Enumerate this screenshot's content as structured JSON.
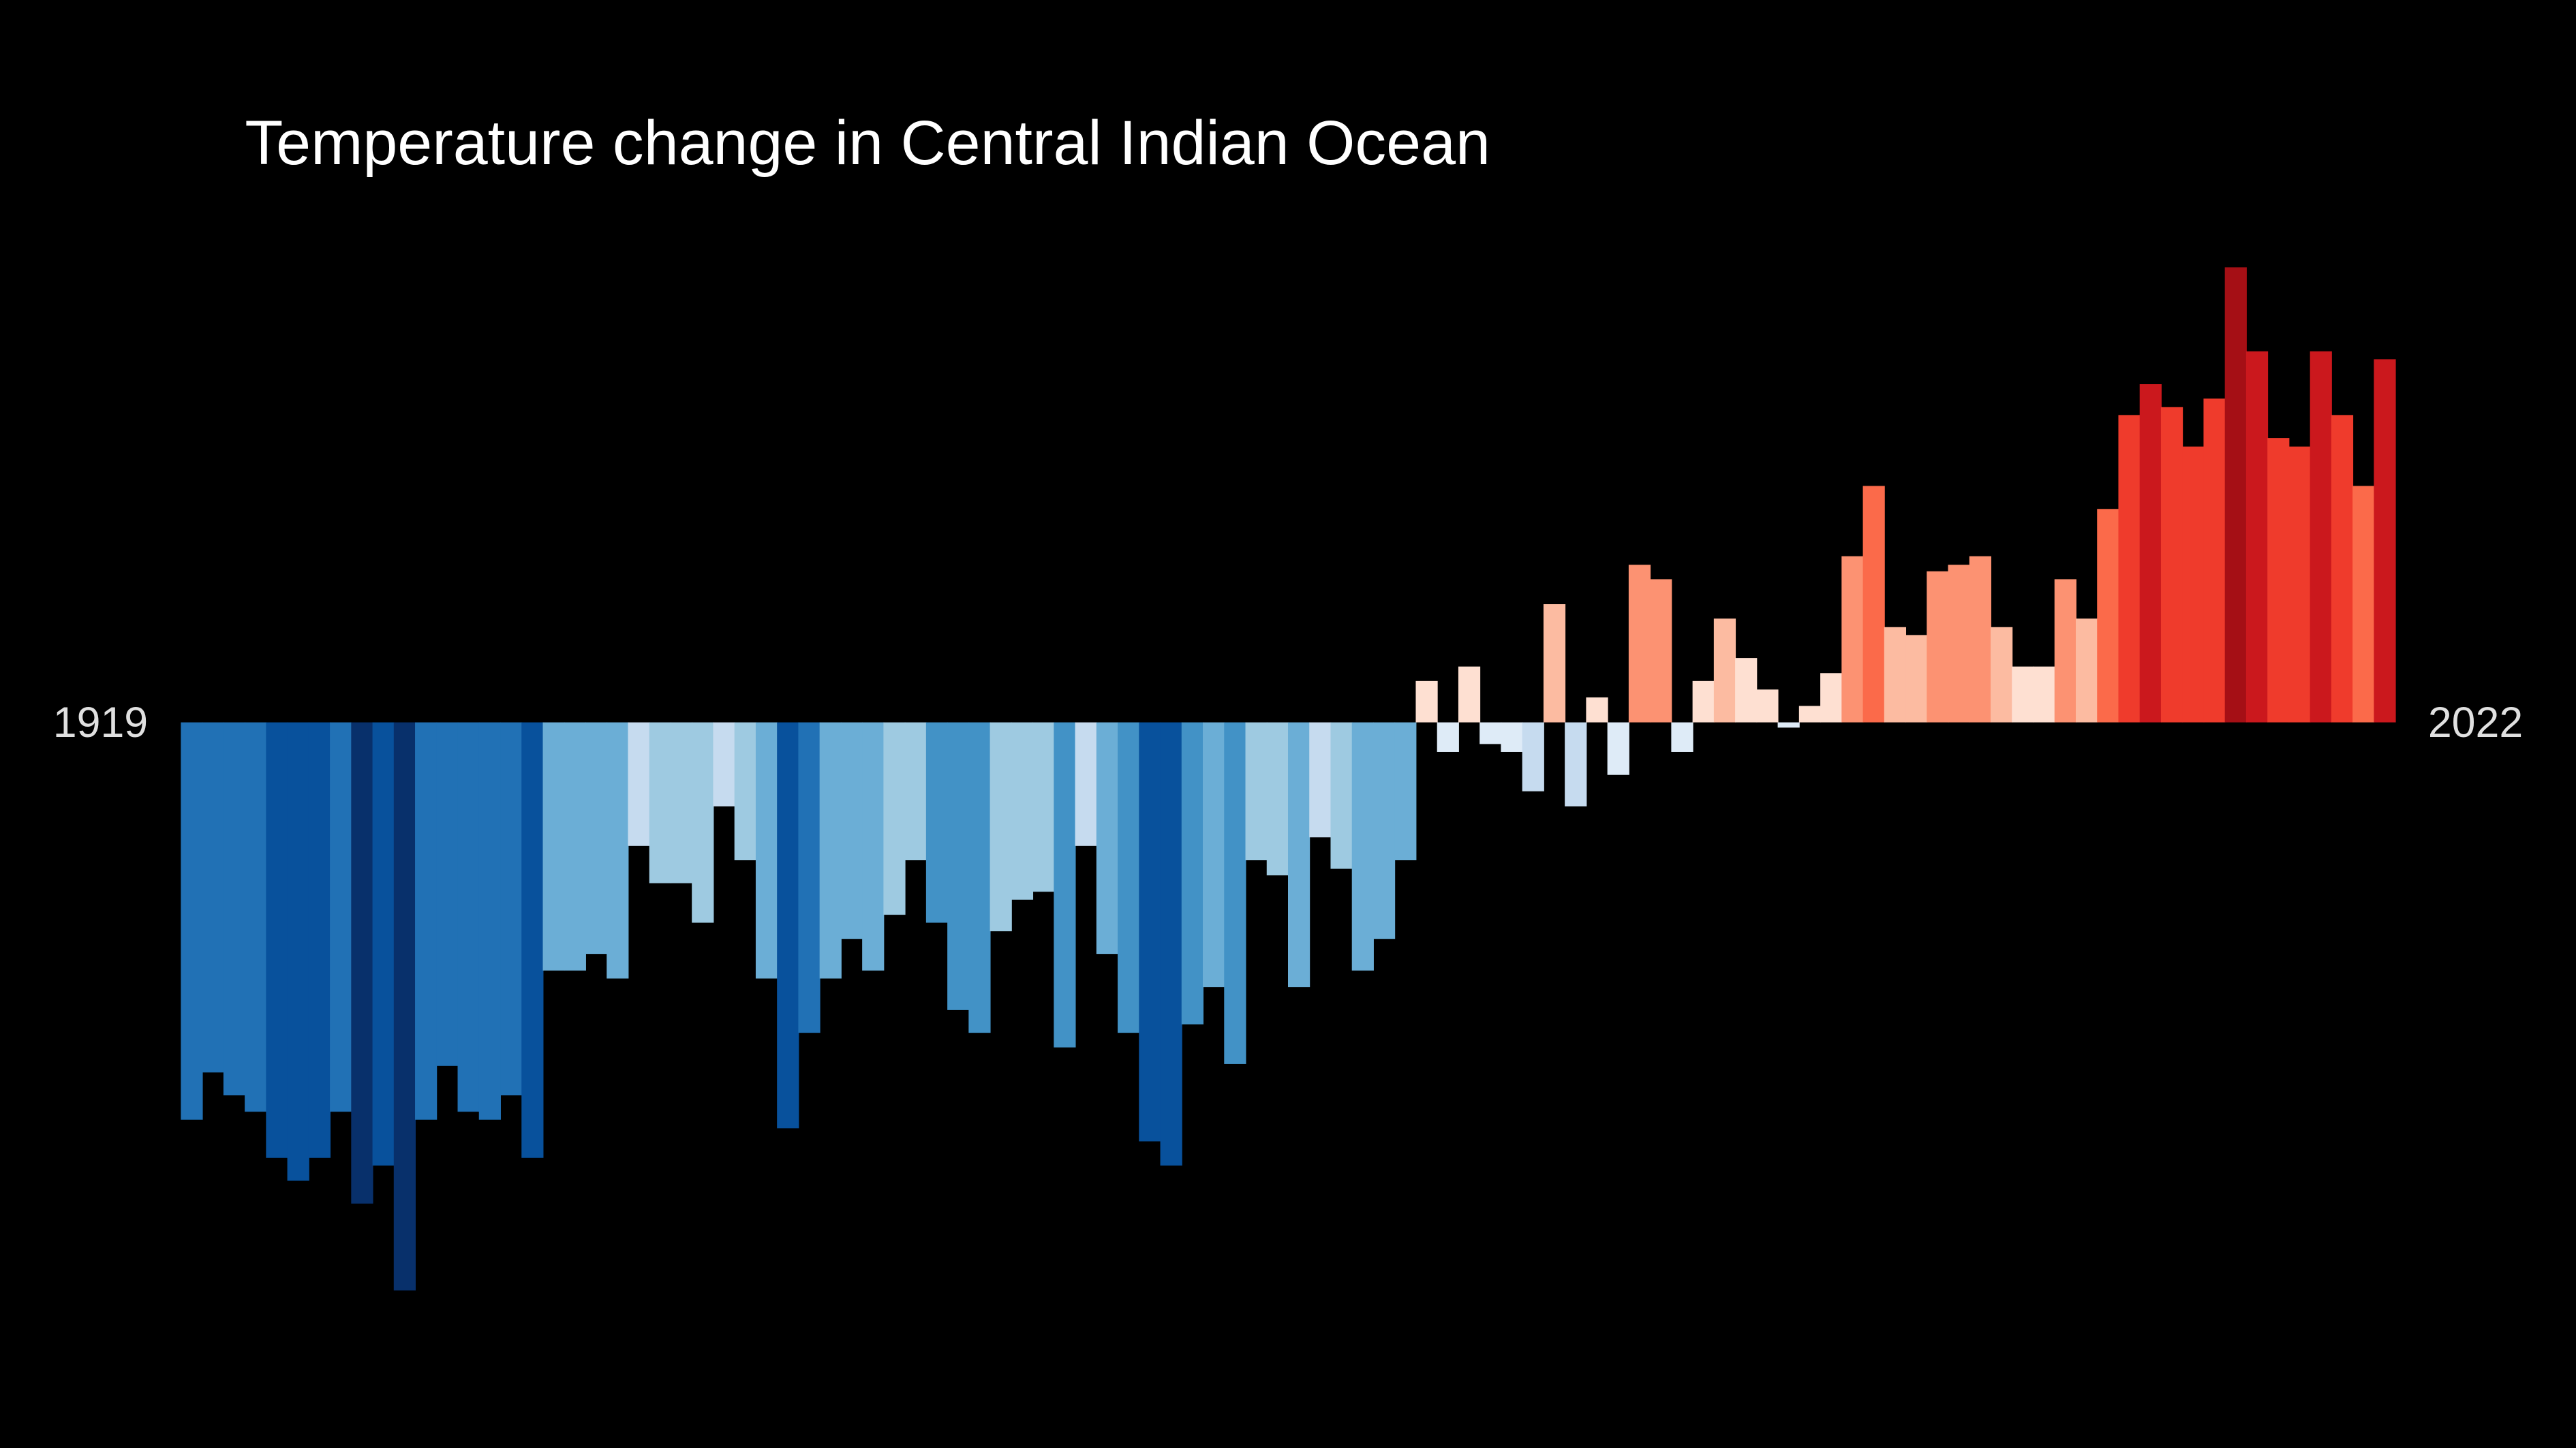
{
  "chart_data": {
    "type": "bar",
    "title": "Temperature change in Central Indian Ocean",
    "categories": [
      "1919",
      null,
      null,
      null,
      null,
      null,
      null,
      null,
      null,
      null,
      null,
      null,
      null,
      null,
      null,
      null,
      null,
      null,
      null,
      null,
      null,
      null,
      null,
      null,
      null,
      null,
      null,
      null,
      null,
      null,
      null,
      null,
      null,
      null,
      null,
      null,
      null,
      null,
      null,
      null,
      null,
      null,
      null,
      null,
      null,
      null,
      null,
      null,
      null,
      null,
      null,
      null,
      null,
      null,
      null,
      null,
      null,
      null,
      null,
      null,
      null,
      null,
      null,
      null,
      null,
      null,
      null,
      null,
      null,
      null,
      null,
      null,
      null,
      null,
      null,
      null,
      null,
      null,
      null,
      null,
      null,
      null,
      null,
      null,
      null,
      null,
      null,
      null,
      null,
      null,
      null,
      null,
      null,
      null,
      null,
      null,
      null,
      null,
      null,
      null,
      null,
      null,
      null,
      "2022"
    ],
    "values": [
      -0.605,
      -0.533,
      -0.568,
      -0.593,
      -0.663,
      -0.698,
      -0.663,
      -0.593,
      -0.733,
      -0.675,
      -0.865,
      -0.605,
      -0.523,
      -0.593,
      -0.605,
      -0.568,
      -0.663,
      -0.378,
      -0.378,
      -0.353,
      -0.39,
      -0.188,
      -0.245,
      -0.245,
      -0.305,
      -0.128,
      -0.21,
      -0.39,
      -0.618,
      -0.473,
      -0.39,
      -0.33,
      -0.378,
      -0.293,
      -0.21,
      -0.305,
      -0.438,
      -0.473,
      -0.318,
      -0.27,
      -0.258,
      -0.495,
      -0.188,
      -0.353,
      -0.473,
      -0.638,
      -0.675,
      -0.46,
      -0.403,
      -0.52,
      -0.21,
      -0.233,
      -0.403,
      -0.175,
      -0.223,
      -0.378,
      -0.33,
      -0.21,
      0.063,
      -0.045,
      0.085,
      -0.033,
      -0.045,
      -0.105,
      0.18,
      -0.128,
      0.038,
      -0.08,
      0.24,
      0.218,
      -0.045,
      0.063,
      0.158,
      0.098,
      0.05,
      -0.008,
      0.025,
      0.075,
      0.253,
      0.36,
      0.145,
      0.133,
      0.23,
      0.24,
      0.253,
      0.145,
      0.085,
      0.085,
      0.218,
      0.158,
      0.325,
      0.468,
      0.515,
      0.48,
      0.42,
      0.493,
      0.693,
      0.565,
      0.433,
      0.42,
      0.565,
      0.468,
      0.36,
      0.553
    ],
    "colors": [
      "#2171b5",
      "#2171b5",
      "#2171b5",
      "#2171b5",
      "#08519c",
      "#08519c",
      "#08519c",
      "#2171b5",
      "#08306b",
      "#08519c",
      "#08306b",
      "#2171b5",
      "#2171b5",
      "#2171b5",
      "#2171b5",
      "#2171b5",
      "#08519c",
      "#6baed6",
      "#6baed6",
      "#6baed6",
      "#6baed6",
      "#c6dbef",
      "#9ecae1",
      "#9ecae1",
      "#9ecae1",
      "#c6dbef",
      "#9ecae1",
      "#6baed6",
      "#08519c",
      "#2171b5",
      "#6baed6",
      "#6baed6",
      "#6baed6",
      "#9ecae1",
      "#9ecae1",
      "#4292c6",
      "#4292c6",
      "#4292c6",
      "#9ecae1",
      "#9ecae1",
      "#9ecae1",
      "#4292c6",
      "#c6dbef",
      "#6baed6",
      "#4292c6",
      "#08519c",
      "#08519c",
      "#4292c6",
      "#6baed6",
      "#4292c6",
      "#9ecae1",
      "#9ecae1",
      "#6baed6",
      "#c6dbef",
      "#9ecae1",
      "#6baed6",
      "#6baed6",
      "#6baed6",
      "#fee0d2",
      "#deebf7",
      "#fee0d2",
      "#deebf7",
      "#deebf7",
      "#c6dbef",
      "#fcbba1",
      "#c6dbef",
      "#fee0d2",
      "#deebf7",
      "#fc9272",
      "#fc9272",
      "#deebf7",
      "#fee0d2",
      "#fcbba1",
      "#fee0d2",
      "#fee0d2",
      "#deebf7",
      "#fee0d2",
      "#fee0d2",
      "#fc9272",
      "#fb6a4a",
      "#fcbba1",
      "#fcbba1",
      "#fc9272",
      "#fc9272",
      "#fc9272",
      "#fcbba1",
      "#fee0d2",
      "#fee0d2",
      "#fc9272",
      "#fcbba1",
      "#fb6a4a",
      "#ef3b2c",
      "#cb181d",
      "#ef3b2c",
      "#ef3b2c",
      "#ef3b2c",
      "#a50f15",
      "#cb181d",
      "#ef3b2c",
      "#ef3b2c",
      "#cb181d",
      "#ef3b2c",
      "#fb6a4a",
      "#cb181d"
    ],
    "ylim": [
      -1,
      1
    ]
  }
}
